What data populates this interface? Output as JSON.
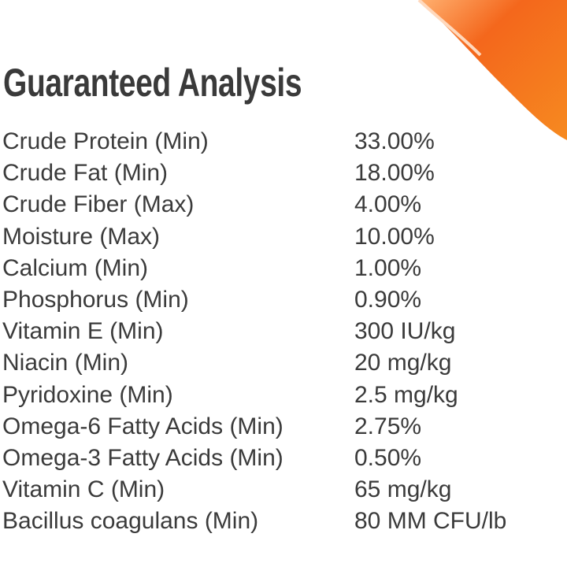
{
  "header": {
    "title": "Guaranteed Analysis"
  },
  "table": {
    "rows": [
      [
        "Crude Protein (Min)",
        "33.00%"
      ],
      [
        "Crude Fat (Min)",
        "18.00%"
      ],
      [
        "Crude Fiber (Max)",
        "4.00%"
      ],
      [
        "Moisture (Max)",
        "10.00%"
      ],
      [
        "Calcium (Min)",
        "1.00%"
      ],
      [
        "Phosphorus (Min)",
        "0.90%"
      ],
      [
        "Vitamin E (Min)",
        "300 IU/kg"
      ],
      [
        "Niacin (Min)",
        "20 mg/kg"
      ],
      [
        "Pyridoxine (Min)",
        "2.5 mg/kg"
      ],
      [
        "Omega-6 Fatty Acids (Min)",
        "2.75%"
      ],
      [
        "Omega-3 Fatty Acids (Min)",
        "0.50%"
      ],
      [
        "Vitamin C (Min)",
        "65 mg/kg"
      ],
      [
        "Bacillus coagulans (Min)",
        "80 MM CFU/lb"
      ]
    ]
  }
}
